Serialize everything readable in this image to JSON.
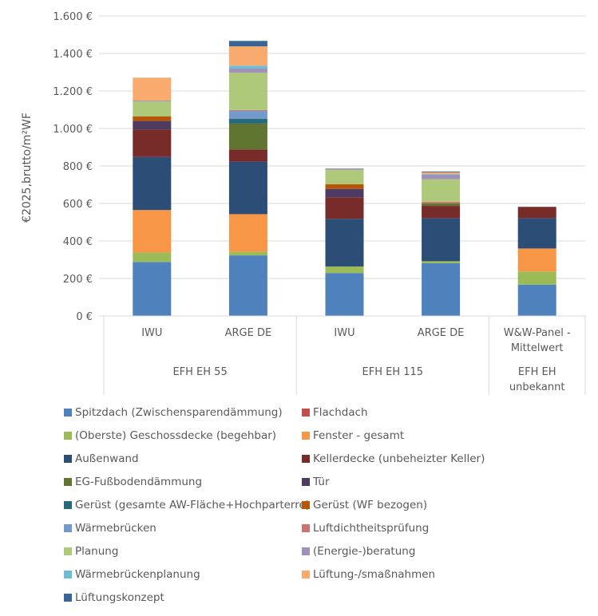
{
  "chart_data": {
    "type": "bar",
    "stacked": true,
    "title": "",
    "xlabel": "",
    "ylabel": "€2025,brutto/m²WF",
    "ylim": [
      0,
      1600
    ],
    "yticks": [
      0,
      200,
      400,
      600,
      800,
      1000,
      1200,
      1400,
      1600
    ],
    "ytick_labels": [
      "0 €",
      "200 €",
      "400 €",
      "600 €",
      "800 €",
      "1.000 €",
      "1.200 €",
      "1.400 €",
      "1.600 €"
    ],
    "grid": true,
    "legend_position": "bottom",
    "categories": [
      "IWU",
      "ARGE DE",
      "IWU",
      "ARGE DE",
      "W&W-Panel - Mittelwert"
    ],
    "category_lines": [
      [
        "IWU"
      ],
      [
        "ARGE DE"
      ],
      [
        "IWU"
      ],
      [
        "ARGE DE"
      ],
      [
        "W&W-Panel -",
        "Mittelwert"
      ]
    ],
    "groups": [
      {
        "label_lines": [
          "EFH EH 55"
        ],
        "span": [
          0,
          1
        ]
      },
      {
        "label_lines": [
          "EFH EH 115"
        ],
        "span": [
          2,
          3
        ]
      },
      {
        "label_lines": [
          "EFH EH",
          "unbekannt"
        ],
        "span": [
          4,
          4
        ]
      }
    ],
    "series": [
      {
        "name": "Spitzdach (Zwischensparendämmung)",
        "color": "#4F81BD",
        "values": [
          288,
          323,
          229,
          281,
          167
        ]
      },
      {
        "name": "Flachdach",
        "color": "#C0504D",
        "values": [
          0,
          0,
          0,
          0,
          0
        ]
      },
      {
        "name": "(Oberste) Geschossdecke (begehbar)",
        "color": "#9BBB59",
        "values": [
          50,
          19,
          35,
          11,
          70
        ]
      },
      {
        "name": "Fenster - gesamt",
        "color": "#F79646",
        "values": [
          227,
          201,
          0,
          0,
          123
        ]
      },
      {
        "name": "Außenwand",
        "color": "#2C4D75",
        "values": [
          283,
          280,
          254,
          230,
          162
        ]
      },
      {
        "name": "Kellerdecke (unbeheizter Keller)",
        "color": "#772C2A",
        "values": [
          146,
          65,
          115,
          65,
          60
        ]
      },
      {
        "name": "EG-Fußbodendämmung",
        "color": "#5F7530",
        "values": [
          0,
          138,
          0,
          14,
          0
        ]
      },
      {
        "name": "Tür",
        "color": "#4D3B62",
        "values": [
          46,
          0,
          45,
          0,
          0
        ]
      },
      {
        "name": "Gerüst (gesamte AW-Fläche+Hochparterre)",
        "color": "#276A7C",
        "values": [
          0,
          25,
          0,
          0,
          0
        ]
      },
      {
        "name": "Gerüst (WF bezogen)",
        "color": "#B65708",
        "values": [
          25,
          0,
          25,
          0,
          0
        ]
      },
      {
        "name": "Wärmebrücken",
        "color": "#729ACA",
        "values": [
          0,
          43,
          0,
          0,
          0
        ]
      },
      {
        "name": "Luftdichtheitsprüfung",
        "color": "#CD7371",
        "values": [
          0,
          5,
          0,
          8,
          0
        ]
      },
      {
        "name": "Planung",
        "color": "#AFC97A",
        "values": [
          80,
          199,
          77,
          120,
          0
        ]
      },
      {
        "name": "(Energie-)beratung",
        "color": "#A18FBC",
        "values": [
          4,
          21,
          7,
          24,
          0
        ]
      },
      {
        "name": "Wärmebrückenplanung",
        "color": "#6FBDD1",
        "values": [
          0,
          16,
          0,
          4,
          0
        ]
      },
      {
        "name": "Lüftung-/smaßnahmen",
        "color": "#F9AB6F",
        "values": [
          122,
          103,
          0,
          9,
          0
        ]
      },
      {
        "name": "Lüftungskonzept",
        "color": "#3A6597",
        "values": [
          0,
          29,
          0,
          4,
          0
        ]
      }
    ]
  }
}
